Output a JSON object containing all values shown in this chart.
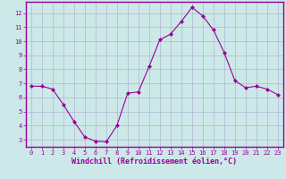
{
  "x": [
    0,
    1,
    2,
    3,
    4,
    5,
    6,
    7,
    8,
    9,
    10,
    11,
    12,
    13,
    14,
    15,
    16,
    17,
    18,
    19,
    20,
    21,
    22,
    23
  ],
  "y": [
    6.8,
    6.8,
    6.6,
    5.5,
    4.3,
    3.2,
    2.9,
    2.85,
    4.0,
    6.3,
    6.4,
    8.2,
    10.1,
    10.5,
    11.4,
    12.4,
    11.8,
    10.8,
    9.2,
    7.2,
    6.7,
    6.8,
    6.6,
    6.2
  ],
  "line_color": "#990099",
  "marker": "D",
  "marker_size": 2,
  "background_color": "#cce8e8",
  "grid_color": "#aaaacc",
  "xlabel": "Windchill (Refroidissement éolien,°C)",
  "xlabel_color": "#990099",
  "ylim": [
    2.5,
    12.8
  ],
  "yticks": [
    3,
    4,
    5,
    6,
    7,
    8,
    9,
    10,
    11,
    12
  ],
  "xlim": [
    -0.5,
    23.5
  ],
  "xticks": [
    0,
    1,
    2,
    3,
    4,
    5,
    6,
    7,
    8,
    9,
    10,
    11,
    12,
    13,
    14,
    15,
    16,
    17,
    18,
    19,
    20,
    21,
    22,
    23
  ],
  "tick_color": "#990099",
  "tick_fontsize": 5.0,
  "xlabel_fontsize": 6.0,
  "spine_color": "#990099",
  "border_color": "#990099"
}
